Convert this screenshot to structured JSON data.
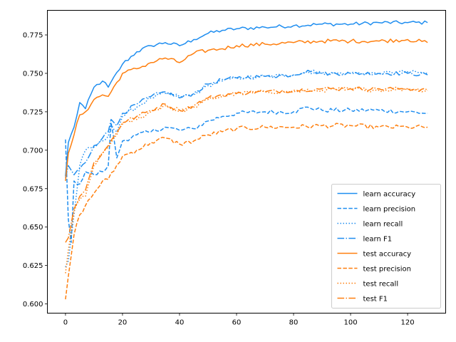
{
  "chart_data": {
    "type": "line",
    "title": "",
    "xlabel": "",
    "ylabel": "",
    "xlim": [
      -6.35,
      133.35
    ],
    "ylim": [
      0.594,
      0.791
    ],
    "x_ticks": [
      0,
      20,
      40,
      60,
      80,
      100,
      120
    ],
    "y_ticks": [
      0.6,
      0.625,
      0.65,
      0.675,
      0.7,
      0.725,
      0.75,
      0.775
    ],
    "grid": false,
    "legend_position": "lower-right",
    "colors": {
      "learn": "#1f77b4",
      "learn_bright": "#1f8ef0",
      "test": "#ff7f0e"
    },
    "series": [
      {
        "name": "learn accuracy",
        "color": "#1f8ef0",
        "dash": "solid",
        "anchors": [
          [
            0,
            0.683
          ],
          [
            1,
            0.705
          ],
          [
            3,
            0.715
          ],
          [
            5,
            0.731
          ],
          [
            7,
            0.727
          ],
          [
            10,
            0.741
          ],
          [
            13,
            0.745
          ],
          [
            15,
            0.741
          ],
          [
            20,
            0.756
          ],
          [
            25,
            0.764
          ],
          [
            30,
            0.768
          ],
          [
            35,
            0.77
          ],
          [
            40,
            0.768
          ],
          [
            45,
            0.772
          ],
          [
            50,
            0.776
          ],
          [
            55,
            0.778
          ],
          [
            60,
            0.779
          ],
          [
            70,
            0.78
          ],
          [
            80,
            0.781
          ],
          [
            90,
            0.782
          ],
          [
            100,
            0.782
          ],
          [
            110,
            0.783
          ],
          [
            120,
            0.783
          ],
          [
            127,
            0.783
          ]
        ],
        "jitter": 0.0012
      },
      {
        "name": "learn precision",
        "color": "#1f8ef0",
        "dash": "dashed",
        "anchors": [
          [
            0,
            0.707
          ],
          [
            1,
            0.655
          ],
          [
            2,
            0.64
          ],
          [
            3,
            0.68
          ],
          [
            5,
            0.678
          ],
          [
            7,
            0.686
          ],
          [
            10,
            0.684
          ],
          [
            13,
            0.686
          ],
          [
            15,
            0.69
          ],
          [
            16,
            0.718
          ],
          [
            18,
            0.695
          ],
          [
            20,
            0.706
          ],
          [
            25,
            0.71
          ],
          [
            30,
            0.712
          ],
          [
            35,
            0.715
          ],
          [
            40,
            0.713
          ],
          [
            45,
            0.714
          ],
          [
            50,
            0.719
          ],
          [
            55,
            0.722
          ],
          [
            60,
            0.724
          ],
          [
            70,
            0.725
          ],
          [
            80,
            0.725
          ],
          [
            85,
            0.728
          ],
          [
            90,
            0.726
          ],
          [
            100,
            0.726
          ],
          [
            110,
            0.726
          ],
          [
            120,
            0.725
          ],
          [
            127,
            0.724
          ]
        ],
        "jitter": 0.0015
      },
      {
        "name": "learn recall",
        "color": "#1f8ef0",
        "dash": "dotted",
        "anchors": [
          [
            0,
            0.624
          ],
          [
            1,
            0.628
          ],
          [
            3,
            0.658
          ],
          [
            5,
            0.69
          ],
          [
            7,
            0.7
          ],
          [
            10,
            0.702
          ],
          [
            13,
            0.706
          ],
          [
            15,
            0.709
          ],
          [
            16,
            0.717
          ],
          [
            18,
            0.712
          ],
          [
            20,
            0.722
          ],
          [
            25,
            0.728
          ],
          [
            30,
            0.734
          ],
          [
            35,
            0.737
          ],
          [
            40,
            0.735
          ],
          [
            45,
            0.736
          ],
          [
            50,
            0.742
          ],
          [
            55,
            0.745
          ],
          [
            60,
            0.747
          ],
          [
            70,
            0.748
          ],
          [
            80,
            0.749
          ],
          [
            85,
            0.751
          ],
          [
            90,
            0.75
          ],
          [
            100,
            0.75
          ],
          [
            110,
            0.75
          ],
          [
            120,
            0.751
          ],
          [
            127,
            0.75
          ]
        ],
        "jitter": 0.0012
      },
      {
        "name": "learn F1",
        "color": "#1f8ef0",
        "dash": "dashdot",
        "anchors": [
          [
            0,
            0.682
          ],
          [
            1,
            0.69
          ],
          [
            3,
            0.684
          ],
          [
            5,
            0.688
          ],
          [
            7,
            0.692
          ],
          [
            10,
            0.703
          ],
          [
            13,
            0.708
          ],
          [
            15,
            0.712
          ],
          [
            16,
            0.72
          ],
          [
            18,
            0.716
          ],
          [
            20,
            0.724
          ],
          [
            25,
            0.73
          ],
          [
            30,
            0.735
          ],
          [
            35,
            0.738
          ],
          [
            40,
            0.734
          ],
          [
            45,
            0.737
          ],
          [
            50,
            0.743
          ],
          [
            55,
            0.746
          ],
          [
            60,
            0.747
          ],
          [
            70,
            0.748
          ],
          [
            80,
            0.749
          ],
          [
            85,
            0.752
          ],
          [
            90,
            0.75
          ],
          [
            100,
            0.75
          ],
          [
            110,
            0.75
          ],
          [
            120,
            0.75
          ],
          [
            127,
            0.749
          ]
        ],
        "jitter": 0.0013
      },
      {
        "name": "test accuracy",
        "color": "#ff7f0e",
        "dash": "solid",
        "anchors": [
          [
            0,
            0.68
          ],
          [
            1,
            0.698
          ],
          [
            3,
            0.71
          ],
          [
            5,
            0.723
          ],
          [
            7,
            0.725
          ],
          [
            10,
            0.733
          ],
          [
            13,
            0.736
          ],
          [
            15,
            0.735
          ],
          [
            20,
            0.75
          ],
          [
            25,
            0.753
          ],
          [
            30,
            0.757
          ],
          [
            35,
            0.76
          ],
          [
            40,
            0.757
          ],
          [
            45,
            0.763
          ],
          [
            50,
            0.765
          ],
          [
            55,
            0.766
          ],
          [
            60,
            0.768
          ],
          [
            70,
            0.769
          ],
          [
            80,
            0.77
          ],
          [
            90,
            0.771
          ],
          [
            100,
            0.771
          ],
          [
            110,
            0.771
          ],
          [
            120,
            0.772
          ],
          [
            127,
            0.77
          ]
        ],
        "jitter": 0.0013
      },
      {
        "name": "test precision",
        "color": "#ff7f0e",
        "dash": "dashed",
        "anchors": [
          [
            0,
            0.603
          ],
          [
            1,
            0.618
          ],
          [
            3,
            0.645
          ],
          [
            5,
            0.658
          ],
          [
            7,
            0.664
          ],
          [
            10,
            0.672
          ],
          [
            13,
            0.68
          ],
          [
            15,
            0.681
          ],
          [
            20,
            0.696
          ],
          [
            25,
            0.7
          ],
          [
            30,
            0.705
          ],
          [
            35,
            0.708
          ],
          [
            40,
            0.704
          ],
          [
            45,
            0.706
          ],
          [
            50,
            0.71
          ],
          [
            55,
            0.712
          ],
          [
            60,
            0.714
          ],
          [
            70,
            0.715
          ],
          [
            80,
            0.715
          ],
          [
            90,
            0.716
          ],
          [
            100,
            0.716
          ],
          [
            110,
            0.715
          ],
          [
            120,
            0.715
          ],
          [
            127,
            0.715
          ]
        ],
        "jitter": 0.0015
      },
      {
        "name": "test recall",
        "color": "#ff7f0e",
        "dash": "dotted",
        "anchors": [
          [
            0,
            0.62
          ],
          [
            1,
            0.635
          ],
          [
            3,
            0.66
          ],
          [
            5,
            0.668
          ],
          [
            7,
            0.67
          ],
          [
            10,
            0.69
          ],
          [
            13,
            0.698
          ],
          [
            15,
            0.702
          ],
          [
            20,
            0.717
          ],
          [
            25,
            0.72
          ],
          [
            30,
            0.725
          ],
          [
            35,
            0.729
          ],
          [
            40,
            0.725
          ],
          [
            45,
            0.728
          ],
          [
            50,
            0.733
          ],
          [
            55,
            0.735
          ],
          [
            60,
            0.737
          ],
          [
            70,
            0.738
          ],
          [
            80,
            0.738
          ],
          [
            90,
            0.739
          ],
          [
            100,
            0.74
          ],
          [
            110,
            0.739
          ],
          [
            120,
            0.74
          ],
          [
            127,
            0.739
          ]
        ],
        "jitter": 0.0013
      },
      {
        "name": "test F1",
        "color": "#ff7f0e",
        "dash": "dashdot",
        "anchors": [
          [
            0,
            0.64
          ],
          [
            1,
            0.643
          ],
          [
            3,
            0.662
          ],
          [
            5,
            0.67
          ],
          [
            7,
            0.674
          ],
          [
            10,
            0.692
          ],
          [
            13,
            0.698
          ],
          [
            15,
            0.703
          ],
          [
            20,
            0.718
          ],
          [
            25,
            0.722
          ],
          [
            30,
            0.726
          ],
          [
            35,
            0.73
          ],
          [
            40,
            0.726
          ],
          [
            45,
            0.729
          ],
          [
            50,
            0.734
          ],
          [
            55,
            0.736
          ],
          [
            60,
            0.737
          ],
          [
            70,
            0.738
          ],
          [
            80,
            0.739
          ],
          [
            90,
            0.74
          ],
          [
            100,
            0.74
          ],
          [
            110,
            0.74
          ],
          [
            120,
            0.74
          ],
          [
            127,
            0.739
          ]
        ],
        "jitter": 0.0013
      }
    ]
  }
}
